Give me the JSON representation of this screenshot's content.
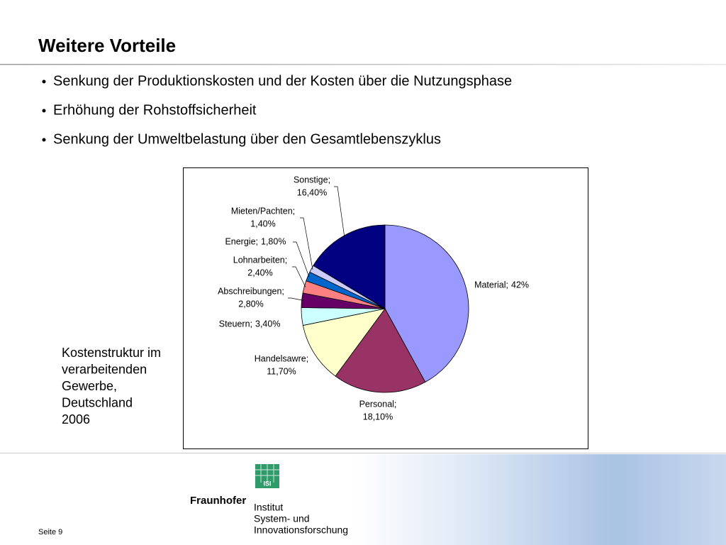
{
  "header": {
    "title": "Weitere Vorteile"
  },
  "bullets": [
    "Senkung der Produktionskosten und der Kosten über die Nutzungsphase",
    "Erhöhung der Rohstoffsicherheit",
    "Senkung der Umweltbelastung über den Gesamtlebenszyklus"
  ],
  "caption": [
    "Kostenstruktur im",
    "verarbeitenden",
    "Gewerbe,",
    "Deutschland",
    "2006"
  ],
  "chart_data": {
    "type": "pie",
    "categories": [
      "Material;",
      "Personal;",
      "Handelsawre;",
      "Steuern;",
      "Abschreibungen;",
      "Lohnarbeiten;",
      "Energie;",
      "Mieten/Pachten;",
      "Sonstige;"
    ],
    "values": [
      42,
      18.1,
      11.7,
      3.4,
      2.8,
      2.4,
      1.8,
      1.4,
      16.4
    ],
    "value_labels": [
      "42%",
      "18,10%",
      "11,70%",
      "3,40%",
      "2,80%",
      "2,40%",
      "1,80%",
      "1,40%",
      "16,40%"
    ],
    "colors": [
      "#9999ff",
      "#993366",
      "#ffffcc",
      "#ccffff",
      "#660066",
      "#ff8080",
      "#0066cc",
      "#ccccff",
      "#000080"
    ]
  },
  "footer": {
    "page": "Seite 9",
    "logo": {
      "badge": "ISI",
      "name": "Fraunhofer",
      "institute": [
        "Institut",
        "System- und",
        "Innovationsforschung"
      ]
    }
  }
}
